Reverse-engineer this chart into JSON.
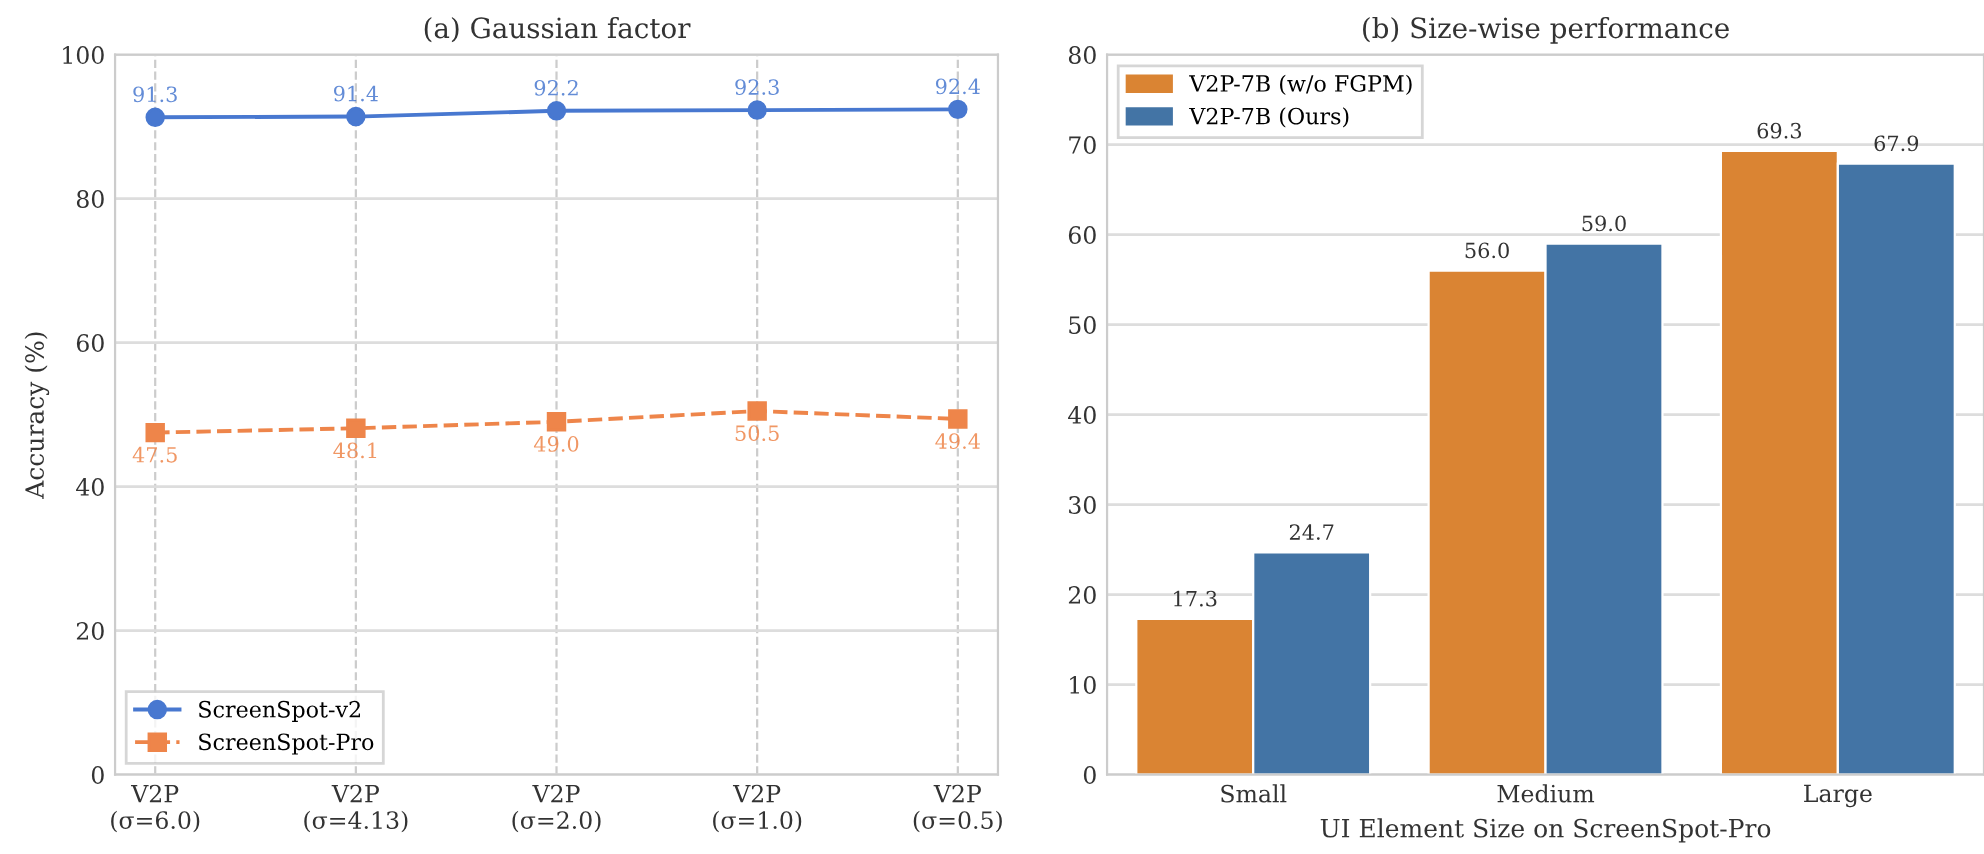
{
  "chart_data": [
    {
      "type": "line",
      "title": "(a) Gaussian factor",
      "ylabel": "Accuracy (%)",
      "categories": [
        "V2P\n(σ=6.0)",
        "V2P\n(σ=4.13)",
        "V2P\n(σ=2.0)",
        "V2P\n(σ=1.0)",
        "V2P\n(σ=0.5)"
      ],
      "series": [
        {
          "name": "ScreenSpot-v2",
          "color": "#4878d0",
          "values": [
            91.3,
            91.4,
            92.2,
            92.3,
            92.4
          ],
          "value_labels": [
            "91.3",
            "91.4",
            "92.2",
            "92.3",
            "92.4"
          ],
          "marker": "circle",
          "line_style": "solid"
        },
        {
          "name": "ScreenSpot-Pro",
          "color": "#ee854a",
          "values": [
            47.5,
            48.1,
            49.0,
            50.5,
            49.4
          ],
          "value_labels": [
            "47.5",
            "48.1",
            "49.0",
            "50.5",
            "49.4"
          ],
          "marker": "square",
          "line_style": "dashed"
        }
      ],
      "ylim": [
        0,
        100
      ],
      "yticks": [
        0,
        20,
        40,
        60,
        80,
        100
      ],
      "grid": true,
      "legend": "bottom left"
    },
    {
      "type": "bar",
      "title": "(b) Size-wise performance",
      "xlabel": "UI Element Size on ScreenSpot-Pro",
      "categories": [
        "Small",
        "Medium",
        "Large"
      ],
      "series": [
        {
          "name": "V2P-7B (w/o FGPM)",
          "color": "#da8433",
          "values": [
            17.3,
            56.0,
            69.3
          ],
          "value_labels": [
            "17.3",
            "56.0",
            "69.3"
          ]
        },
        {
          "name": "V2P-7B (Ours)",
          "color": "#4374a5",
          "values": [
            24.7,
            59.0,
            67.9
          ],
          "value_labels": [
            "24.7",
            "59.0",
            "67.9"
          ]
        }
      ],
      "ylim": [
        0,
        80
      ],
      "yticks": [
        0,
        10,
        20,
        30,
        40,
        50,
        60,
        70,
        80
      ],
      "grid": "y",
      "legend": "top left"
    }
  ]
}
